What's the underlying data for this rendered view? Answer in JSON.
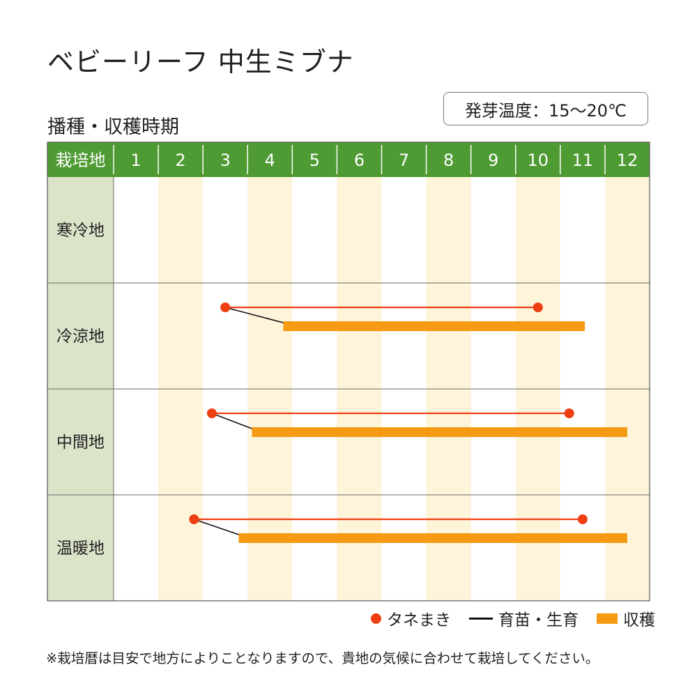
{
  "title": "ベビーリーフ 中生ミブナ",
  "subtitle": "播種・収穫時期",
  "temp_badge": "発芽温度：15～20℃",
  "footnote": "※栽培暦は目安で地方によりことなりますので、貴地の気候に合わせて栽培してください。",
  "legend": {
    "sowing": "タネまき",
    "nursery": "育苗・生育",
    "harvest": "収穫"
  },
  "colors": {
    "header_green": "#4e9a33",
    "region_col": "#dbe3c9",
    "alt_band": "#fdf4d9",
    "sowing": "#ee3e12",
    "harvest": "#f59a12",
    "nursery": "#111111"
  },
  "chart_data": {
    "type": "gantt",
    "corner_label": "栽培地",
    "months": [
      "1",
      "2",
      "3",
      "4",
      "5",
      "6",
      "7",
      "8",
      "9",
      "10",
      "11",
      "12"
    ],
    "rows": [
      {
        "region": "寒冷地",
        "sowing": null,
        "harvest": null
      },
      {
        "region": "冷涼地",
        "sowing": [
          3.5,
          10.5
        ],
        "harvest": [
          4.8,
          11.55
        ]
      },
      {
        "region": "中間地",
        "sowing": [
          3.2,
          11.2
        ],
        "harvest": [
          4.1,
          12.5
        ]
      },
      {
        "region": "温暖地",
        "sowing": [
          2.8,
          11.5
        ],
        "harvest": [
          3.8,
          12.5
        ]
      }
    ]
  }
}
